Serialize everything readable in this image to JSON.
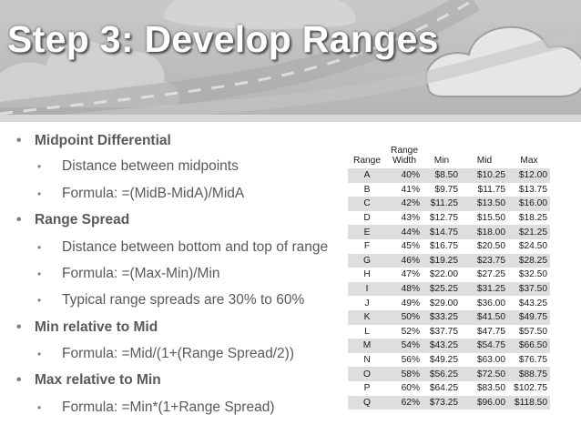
{
  "slide": {
    "title": "Step 3: Develop Ranges"
  },
  "colors": {
    "banner": "#bdbdbd",
    "title_text": "#ffffff",
    "body_text": "#595959",
    "table_stripe": "#dedede"
  },
  "bullets": [
    {
      "level": 1,
      "text": "Midpoint Differential"
    },
    {
      "level": 2,
      "text": "Distance between midpoints"
    },
    {
      "level": 2,
      "text": "Formula:  =(MidB-MidA)/MidA"
    },
    {
      "level": 1,
      "text": "Range Spread"
    },
    {
      "level": 2,
      "text": "Distance between bottom and top of range"
    },
    {
      "level": 2,
      "text": "Formula:  =(Max-Min)/Min"
    },
    {
      "level": 2,
      "text": "Typical range spreads are 30% to 60%"
    },
    {
      "level": 1,
      "text": "Min relative to Mid"
    },
    {
      "level": 2,
      "text": "Formula:  =Mid/(1+(Range Spread/2))"
    },
    {
      "level": 1,
      "text": "Max relative to Min"
    },
    {
      "level": 2,
      "text": "Formula:  =Min*(1+Range Spread)"
    }
  ],
  "table": {
    "headers": {
      "range": "Range",
      "width_line1": "Range",
      "width_line2": "Width",
      "min": "Min",
      "mid": "Mid",
      "max": "Max"
    },
    "rows": [
      {
        "range": "A",
        "width": "40%",
        "min": "$8.50",
        "mid": "$10.25",
        "max": "$12.00"
      },
      {
        "range": "B",
        "width": "41%",
        "min": "$9.75",
        "mid": "$11.75",
        "max": "$13.75"
      },
      {
        "range": "C",
        "width": "42%",
        "min": "$11.25",
        "mid": "$13.50",
        "max": "$16.00"
      },
      {
        "range": "D",
        "width": "43%",
        "min": "$12.75",
        "mid": "$15.50",
        "max": "$18.25"
      },
      {
        "range": "E",
        "width": "44%",
        "min": "$14.75",
        "mid": "$18.00",
        "max": "$21.25"
      },
      {
        "range": "F",
        "width": "45%",
        "min": "$16.75",
        "mid": "$20.50",
        "max": "$24.50"
      },
      {
        "range": "G",
        "width": "46%",
        "min": "$19.25",
        "mid": "$23.75",
        "max": "$28.25"
      },
      {
        "range": "H",
        "width": "47%",
        "min": "$22.00",
        "mid": "$27.25",
        "max": "$32.50"
      },
      {
        "range": "I",
        "width": "48%",
        "min": "$25.25",
        "mid": "$31.25",
        "max": "$37.50"
      },
      {
        "range": "J",
        "width": "49%",
        "min": "$29.00",
        "mid": "$36.00",
        "max": "$43.25"
      },
      {
        "range": "K",
        "width": "50%",
        "min": "$33.25",
        "mid": "$41.50",
        "max": "$49.75"
      },
      {
        "range": "L",
        "width": "52%",
        "min": "$37.75",
        "mid": "$47.75",
        "max": "$57.50"
      },
      {
        "range": "M",
        "width": "54%",
        "min": "$43.25",
        "mid": "$54.75",
        "max": "$66.50"
      },
      {
        "range": "N",
        "width": "56%",
        "min": "$49.25",
        "mid": "$63.00",
        "max": "$76.75"
      },
      {
        "range": "O",
        "width": "58%",
        "min": "$56.25",
        "mid": "$72.50",
        "max": "$88.75"
      },
      {
        "range": "P",
        "width": "60%",
        "min": "$64.25",
        "mid": "$83.50",
        "max": "$102.75"
      },
      {
        "range": "Q",
        "width": "62%",
        "min": "$73.25",
        "mid": "$96.00",
        "max": "$118.50"
      }
    ]
  }
}
